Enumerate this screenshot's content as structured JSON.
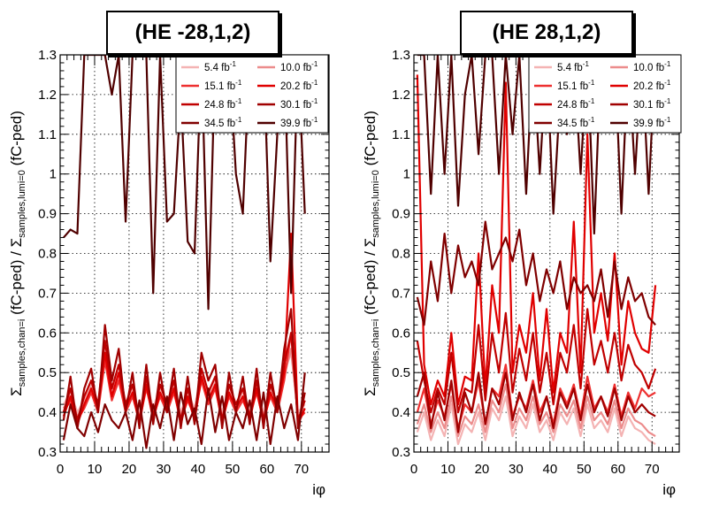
{
  "chart_data": [
    {
      "type": "line",
      "title": "(HE -28,1,2)",
      "xlabel": "iφ",
      "ylabel": "Σsamples,chan=i (fC-ped) / Σsamples,lumi=0 (fC-ped)",
      "xlim": [
        0,
        78
      ],
      "ylim": [
        0.3,
        1.3
      ],
      "x_ticks": [
        "0",
        "10",
        "20",
        "30",
        "40",
        "50",
        "60",
        "70"
      ],
      "y_ticks": [
        "0.3",
        "0.4",
        "0.5",
        "0.6",
        "0.7",
        "0.8",
        "0.9",
        "1",
        "1.1",
        "1.2",
        "1.3"
      ],
      "grid": true,
      "legend_position": "top-right",
      "x": [
        1,
        3,
        5,
        7,
        9,
        11,
        13,
        15,
        17,
        19,
        21,
        23,
        25,
        27,
        29,
        31,
        33,
        35,
        37,
        39,
        41,
        43,
        45,
        47,
        49,
        51,
        53,
        55,
        57,
        59,
        61,
        63,
        65,
        67,
        69,
        71
      ],
      "series": [
        {
          "name": "5.4 fb-1",
          "color": "#f4b3b3",
          "values": [
            0.42,
            0.45,
            0.4,
            0.43,
            0.47,
            0.42,
            0.55,
            0.45,
            0.5,
            0.42,
            0.46,
            0.4,
            0.48,
            0.41,
            0.46,
            0.42,
            0.47,
            0.4,
            0.45,
            0.41,
            0.5,
            0.44,
            0.48,
            0.4,
            0.46,
            0.42,
            0.45,
            0.41,
            0.47,
            0.4,
            0.46,
            0.42,
            0.5,
            0.55,
            0.4,
            0.42
          ]
        },
        {
          "name": "10.0 fb-1",
          "color": "#ec8c8c",
          "values": [
            0.41,
            0.44,
            0.39,
            0.42,
            0.46,
            0.41,
            0.54,
            0.44,
            0.49,
            0.41,
            0.45,
            0.39,
            0.47,
            0.4,
            0.45,
            0.41,
            0.46,
            0.39,
            0.44,
            0.4,
            0.49,
            0.43,
            0.47,
            0.39,
            0.45,
            0.41,
            0.44,
            0.4,
            0.46,
            0.39,
            0.45,
            0.41,
            0.49,
            0.56,
            0.39,
            0.41
          ]
        },
        {
          "name": "15.1 fb-1",
          "color": "#ee3030",
          "values": [
            0.4,
            0.43,
            0.38,
            0.41,
            0.45,
            0.4,
            0.53,
            0.43,
            0.48,
            0.4,
            0.44,
            0.38,
            0.46,
            0.39,
            0.44,
            0.4,
            0.45,
            0.38,
            0.43,
            0.39,
            0.48,
            0.42,
            0.46,
            0.38,
            0.44,
            0.4,
            0.43,
            0.39,
            0.45,
            0.38,
            0.44,
            0.4,
            0.48,
            0.6,
            0.38,
            0.4
          ]
        },
        {
          "name": "20.2 fb-1",
          "color": "#e00000",
          "values": [
            0.39,
            0.44,
            0.37,
            0.42,
            0.46,
            0.41,
            0.55,
            0.44,
            0.5,
            0.41,
            0.45,
            0.37,
            0.47,
            0.38,
            0.45,
            0.41,
            0.46,
            0.37,
            0.44,
            0.38,
            0.49,
            0.43,
            0.47,
            0.37,
            0.45,
            0.41,
            0.44,
            0.38,
            0.46,
            0.37,
            0.45,
            0.41,
            0.5,
            0.85,
            0.37,
            0.41
          ]
        },
        {
          "name": "24.8 fb-1",
          "color": "#c00000",
          "values": [
            0.4,
            0.46,
            0.38,
            0.44,
            0.48,
            0.42,
            0.58,
            0.46,
            0.52,
            0.42,
            0.47,
            0.38,
            0.49,
            0.39,
            0.47,
            0.42,
            0.48,
            0.38,
            0.46,
            0.39,
            0.51,
            0.45,
            0.49,
            0.38,
            0.47,
            0.42,
            0.46,
            0.39,
            0.48,
            0.38,
            0.47,
            0.42,
            0.52,
            0.6,
            0.38,
            0.43
          ]
        },
        {
          "name": "30.1 fb-1",
          "color": "#a00000",
          "values": [
            0.38,
            0.49,
            0.36,
            0.46,
            0.51,
            0.4,
            0.62,
            0.48,
            0.56,
            0.4,
            0.5,
            0.36,
            0.52,
            0.37,
            0.5,
            0.4,
            0.51,
            0.36,
            0.49,
            0.37,
            0.55,
            0.48,
            0.52,
            0.36,
            0.5,
            0.4,
            0.49,
            0.37,
            0.51,
            0.36,
            0.5,
            0.4,
            0.56,
            0.66,
            0.36,
            0.45
          ]
        },
        {
          "name": "34.5 fb-1",
          "color": "#800000",
          "values": [
            0.33,
            0.42,
            0.36,
            0.34,
            0.4,
            0.35,
            0.42,
            0.38,
            0.36,
            0.4,
            0.33,
            0.43,
            0.31,
            0.42,
            0.36,
            0.44,
            0.33,
            0.45,
            0.37,
            0.41,
            0.32,
            0.46,
            0.35,
            0.44,
            0.33,
            0.4,
            0.36,
            0.43,
            0.33,
            0.45,
            0.32,
            0.44,
            0.36,
            0.42,
            0.33,
            0.5
          ]
        },
        {
          "name": "39.9 fb-1",
          "color": "#500000",
          "values": [
            0.84,
            0.86,
            0.85,
            1.3,
            1.3,
            1.3,
            1.3,
            1.2,
            1.3,
            0.88,
            1.3,
            1.3,
            1.3,
            0.7,
            1.3,
            0.88,
            0.9,
            1.2,
            0.83,
            0.8,
            1.3,
            0.66,
            1.3,
            1.2,
            1.3,
            1.0,
            0.9,
            1.3,
            1.2,
            1.3,
            0.78,
            1.1,
            1.3,
            0.7,
            1.3,
            0.9
          ]
        }
      ]
    },
    {
      "type": "line",
      "title": "(HE 28,1,2)",
      "xlabel": "iφ",
      "ylabel": "Σsamples,chan=i (fC-ped) / Σsamples,lumi=0 (fC-ped)",
      "xlim": [
        0,
        78
      ],
      "ylim": [
        0.3,
        1.3
      ],
      "x_ticks": [
        "0",
        "10",
        "20",
        "30",
        "40",
        "50",
        "60",
        "70"
      ],
      "y_ticks": [
        "0.3",
        "0.4",
        "0.5",
        "0.6",
        "0.7",
        "0.8",
        "0.9",
        "1",
        "1.1",
        "1.2",
        "1.3"
      ],
      "grid": true,
      "legend_position": "top-right",
      "x": [
        1,
        3,
        5,
        7,
        9,
        11,
        13,
        15,
        17,
        19,
        21,
        23,
        25,
        27,
        29,
        31,
        33,
        35,
        37,
        39,
        41,
        43,
        45,
        47,
        49,
        51,
        53,
        55,
        57,
        59,
        61,
        63,
        65,
        67,
        69,
        71
      ],
      "series": [
        {
          "name": "5.4 fb-1",
          "color": "#f4b3b3",
          "values": [
            0.35,
            0.4,
            0.33,
            0.38,
            0.34,
            0.42,
            0.32,
            0.37,
            0.35,
            0.4,
            0.33,
            0.41,
            0.38,
            0.44,
            0.34,
            0.39,
            0.36,
            0.42,
            0.35,
            0.38,
            0.33,
            0.4,
            0.37,
            0.41,
            0.34,
            0.42,
            0.36,
            0.38,
            0.35,
            0.41,
            0.34,
            0.39,
            0.36,
            0.35,
            0.33,
            0.32
          ]
        },
        {
          "name": "10.0 fb-1",
          "color": "#ec8c8c",
          "values": [
            0.37,
            0.42,
            0.35,
            0.4,
            0.36,
            0.44,
            0.34,
            0.39,
            0.37,
            0.42,
            0.35,
            0.43,
            0.4,
            0.47,
            0.36,
            0.41,
            0.38,
            0.44,
            0.37,
            0.4,
            0.35,
            0.42,
            0.39,
            0.43,
            0.36,
            0.44,
            0.38,
            0.4,
            0.37,
            0.43,
            0.36,
            0.41,
            0.38,
            0.37,
            0.35,
            0.34
          ]
        },
        {
          "name": "15.1 fb-1",
          "color": "#ee3030",
          "values": [
            0.4,
            0.46,
            0.37,
            0.43,
            0.39,
            0.47,
            0.36,
            0.42,
            0.4,
            0.48,
            0.37,
            0.46,
            0.44,
            0.52,
            0.39,
            0.44,
            0.41,
            0.48,
            0.4,
            0.44,
            0.37,
            0.46,
            0.42,
            0.47,
            0.39,
            0.49,
            0.41,
            0.44,
            0.4,
            0.47,
            0.39,
            0.45,
            0.41,
            0.46,
            0.44,
            0.45
          ]
        },
        {
          "name": "20.2 fb-1",
          "color": "#e00000",
          "values": [
            1.25,
            0.52,
            0.42,
            0.48,
            0.44,
            0.6,
            0.42,
            0.49,
            0.48,
            0.8,
            0.46,
            0.72,
            0.6,
            1.23,
            0.5,
            0.62,
            0.55,
            0.7,
            0.48,
            0.66,
            0.45,
            0.6,
            0.55,
            0.88,
            0.5,
            1.1,
            0.6,
            0.7,
            0.58,
            0.8,
            0.52,
            0.68,
            0.6,
            0.56,
            0.55,
            0.72
          ]
        },
        {
          "name": "24.8 fb-1",
          "color": "#c00000",
          "values": [
            0.58,
            0.48,
            0.4,
            0.46,
            0.42,
            0.55,
            0.4,
            0.46,
            0.45,
            0.62,
            0.43,
            0.6,
            0.5,
            0.65,
            0.45,
            0.56,
            0.48,
            0.6,
            0.45,
            0.55,
            0.42,
            0.55,
            0.5,
            0.62,
            0.46,
            0.66,
            0.52,
            0.58,
            0.5,
            0.6,
            0.48,
            0.57,
            0.52,
            0.5,
            0.46,
            0.51
          ]
        },
        {
          "name": "30.1 fb-1",
          "color": "#a00000",
          "values": [
            0.44,
            0.5,
            0.36,
            0.45,
            0.38,
            0.48,
            0.35,
            0.45,
            0.4,
            0.5,
            0.37,
            0.46,
            0.42,
            0.5,
            0.38,
            0.45,
            0.4,
            0.47,
            0.38,
            0.44,
            0.36,
            0.45,
            0.41,
            0.46,
            0.38,
            0.47,
            0.4,
            0.44,
            0.39,
            0.46,
            0.38,
            0.44,
            0.4,
            0.42,
            0.4,
            0.39
          ]
        },
        {
          "name": "34.5 fb-1",
          "color": "#800000",
          "values": [
            0.69,
            0.62,
            0.78,
            0.68,
            0.85,
            0.7,
            0.82,
            0.74,
            0.78,
            0.72,
            0.88,
            0.76,
            0.8,
            0.84,
            0.78,
            0.86,
            0.72,
            0.8,
            0.68,
            0.76,
            0.7,
            0.78,
            0.66,
            0.74,
            0.7,
            0.72,
            0.68,
            0.76,
            0.64,
            0.78,
            0.66,
            0.74,
            0.68,
            0.7,
            0.64,
            0.62
          ]
        },
        {
          "name": "39.9 fb-1",
          "color": "#500000",
          "values": [
            1.3,
            1.3,
            0.95,
            1.3,
            1.0,
            1.3,
            0.92,
            1.2,
            1.3,
            1.05,
            1.3,
            1.3,
            1.0,
            1.3,
            1.1,
            1.3,
            0.95,
            1.3,
            1.0,
            1.3,
            0.9,
            1.2,
            1.1,
            1.3,
            1.0,
            1.3,
            0.85,
            1.3,
            1.15,
            1.3,
            0.9,
            1.3,
            1.0,
            1.3,
            0.95,
            1.3
          ]
        }
      ]
    }
  ]
}
